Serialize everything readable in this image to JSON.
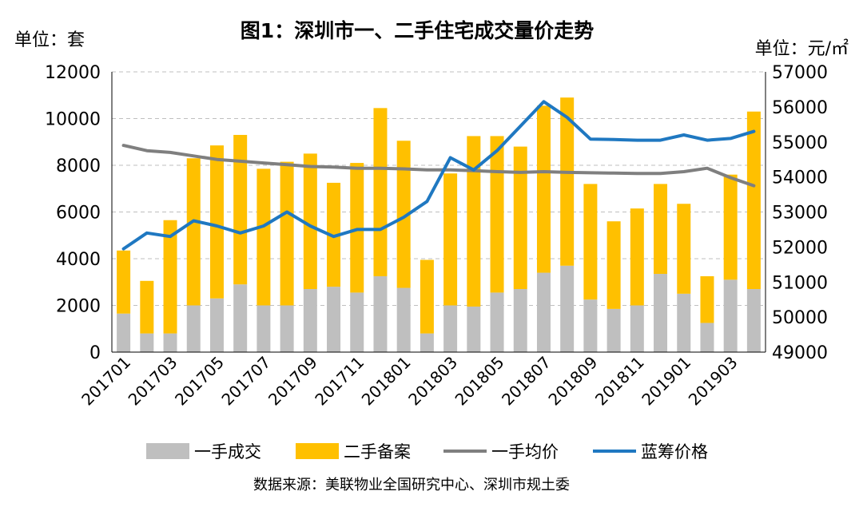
{
  "chart_data": {
    "type": "bar",
    "title": "图1：深圳市一、二手住宅成交量价走势",
    "left_unit": "单位：套",
    "right_unit": "单位：元/㎡",
    "source": "数据来源：美联物业全国研究中心、深圳市规土委",
    "categories": [
      "201701",
      "201702",
      "201703",
      "201704",
      "201705",
      "201706",
      "201707",
      "201708",
      "201709",
      "201710",
      "201711",
      "201712",
      "201801",
      "201802",
      "201803",
      "201804",
      "201805",
      "201806",
      "201807",
      "201808",
      "201809",
      "201810",
      "201811",
      "201812",
      "201901",
      "201902",
      "201903",
      "201904"
    ],
    "x_tick_labels": [
      "201701",
      "201703",
      "201705",
      "201707",
      "201709",
      "201711",
      "201801",
      "201803",
      "201805",
      "201807",
      "201809",
      "201811",
      "201901",
      "201903"
    ],
    "y_left": {
      "min": 0,
      "max": 12000,
      "ticks": [
        "0",
        "2000",
        "4000",
        "6000",
        "8000",
        "10000",
        "12000"
      ]
    },
    "y_right": {
      "min": 49000,
      "max": 57000,
      "ticks": [
        "49000",
        "50000",
        "51000",
        "52000",
        "53000",
        "54000",
        "55000",
        "56000",
        "57000"
      ]
    },
    "grid": "horizontal dashed",
    "legend_position": "bottom",
    "series": [
      {
        "name": "一手成交",
        "kind": "stacked-bar",
        "axis": "left",
        "color": "#BFBFBF",
        "values": [
          1650,
          800,
          800,
          2000,
          2300,
          2900,
          2000,
          2000,
          2700,
          2800,
          2550,
          3250,
          2750,
          800,
          2000,
          1950,
          2550,
          2700,
          3400,
          3700,
          2250,
          1850,
          2000,
          3350,
          2500,
          1250,
          3100,
          2700
        ]
      },
      {
        "name": "二手备案",
        "kind": "stacked-bar",
        "axis": "left",
        "color": "#FFC000",
        "values": [
          2700,
          2250,
          4850,
          6300,
          6550,
          6400,
          5850,
          6150,
          5800,
          4450,
          5550,
          7200,
          6300,
          3150,
          5650,
          7300,
          6700,
          6100,
          7150,
          7200,
          4950,
          3750,
          4150,
          3850,
          3850,
          2000,
          4500,
          7600
        ]
      },
      {
        "name": "一手均价",
        "kind": "line",
        "axis": "right",
        "color": "#7F7F7F",
        "values": [
          54900,
          54750,
          54700,
          54600,
          54500,
          54450,
          54400,
          54350,
          54300,
          54280,
          54250,
          54250,
          54230,
          54200,
          54200,
          54180,
          54150,
          54130,
          54150,
          54130,
          54120,
          54110,
          54100,
          54100,
          54150,
          54250,
          53980,
          53750
        ]
      },
      {
        "name": "蓝筹价格",
        "kind": "line",
        "axis": "right",
        "color": "#1F78C1",
        "values": [
          51950,
          52400,
          52300,
          52750,
          52600,
          52400,
          52600,
          53000,
          52600,
          52300,
          52500,
          52500,
          52850,
          53300,
          54550,
          54200,
          54750,
          55450,
          56150,
          55700,
          55080,
          55070,
          55050,
          55050,
          55200,
          55050,
          55100,
          55300
        ]
      }
    ]
  }
}
